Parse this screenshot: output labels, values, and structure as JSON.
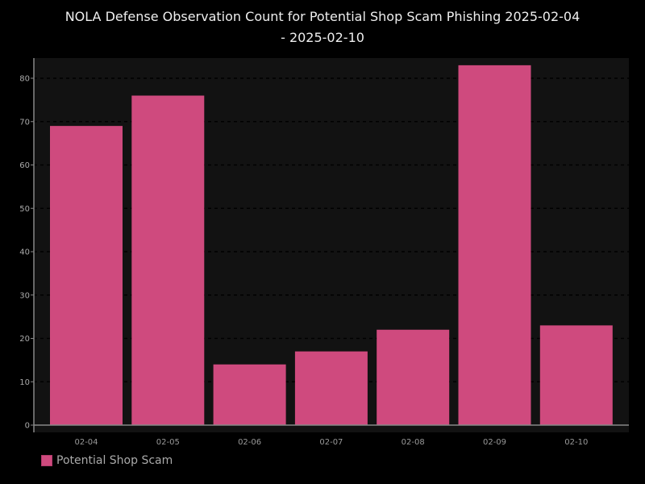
{
  "chart_data": {
    "type": "bar",
    "title": "NOLA Defense Observation Count for Potential Shop Scam Phishing 2025-02-04 - 2025-02-10",
    "title_lines": [
      "NOLA Defense Observation Count for Potential Shop Scam Phishing 2025-02-04",
      "- 2025-02-10"
    ],
    "categories": [
      "02-04",
      "02-05",
      "02-06",
      "02-07",
      "02-08",
      "02-09",
      "02-10"
    ],
    "series": [
      {
        "name": "Potential Shop Scam",
        "values": [
          69,
          76,
          14,
          17,
          22,
          83,
          23
        ]
      }
    ],
    "xlabel": "",
    "ylabel": "",
    "ylim": [
      0,
      85
    ],
    "yticks": [
      0,
      10,
      20,
      30,
      40,
      50,
      60,
      70,
      80
    ],
    "grid": true,
    "legend": "bottom-left",
    "colors": {
      "bar": "#cf4a7e",
      "background": "#000000",
      "plot_background": "#121212"
    }
  }
}
